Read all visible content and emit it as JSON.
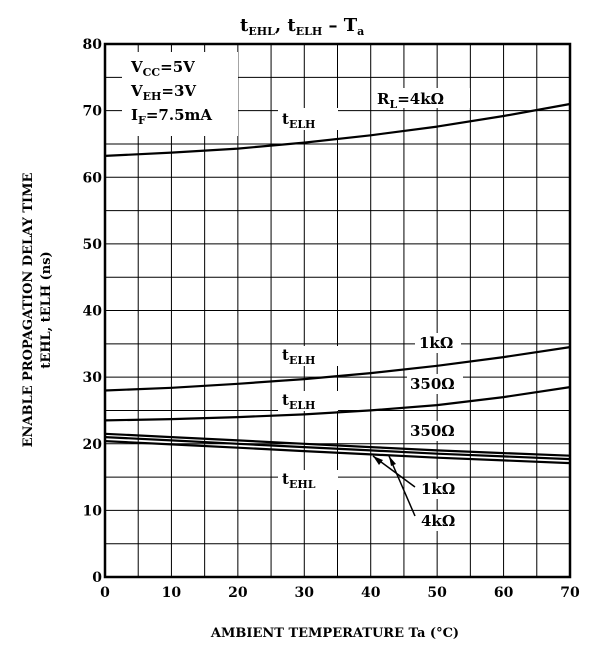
{
  "chart_data": {
    "type": "line",
    "title": {
      "a": "t",
      "a_sub": "EHL",
      "b": ", t",
      "b_sub": "ELH",
      "c": " – T",
      "c_sub": "a"
    },
    "xlabel": "AMBIENT TEMPERATURE Ta (°C)",
    "ylabel": {
      "line1": "ENABLE PROPAGATION DELAY TIME",
      "line2": "tEHL, tELH (ns)"
    },
    "xlim": [
      0,
      70
    ],
    "ylim": [
      0,
      80
    ],
    "x_ticks": [
      0,
      10,
      20,
      30,
      40,
      50,
      60,
      70
    ],
    "y_ticks": [
      0,
      10,
      20,
      30,
      40,
      50,
      60,
      70,
      80
    ],
    "grid": true,
    "conditions": [
      {
        "main": "V",
        "sub": "CC",
        "rest": "=5V"
      },
      {
        "main": "V",
        "sub": "EH",
        "rest": "=3V"
      },
      {
        "main": "I",
        "sub": "F",
        "rest": "=7.5mA"
      }
    ],
    "series": [
      {
        "name": "tELH RL=4kΩ",
        "x": [
          0,
          10,
          20,
          30,
          40,
          50,
          60,
          70
        ],
        "y": [
          63.2,
          63.7,
          64.3,
          65.2,
          66.3,
          67.6,
          69.2,
          71.0
        ]
      },
      {
        "name": "tELH 1kΩ",
        "x": [
          0,
          10,
          20,
          30,
          40,
          50,
          60,
          70
        ],
        "y": [
          28.0,
          28.4,
          29.0,
          29.7,
          30.6,
          31.7,
          33.0,
          34.5
        ]
      },
      {
        "name": "tELH 350Ω",
        "x": [
          0,
          10,
          20,
          30,
          40,
          50,
          60,
          70
        ],
        "y": [
          23.5,
          23.7,
          24.0,
          24.4,
          25.0,
          25.8,
          27.0,
          28.5
        ]
      },
      {
        "name": "tEHL 350Ω",
        "x": [
          0,
          10,
          20,
          30,
          40,
          50,
          60,
          70
        ],
        "y": [
          21.5,
          21.0,
          20.5,
          20.0,
          19.5,
          19.0,
          18.6,
          18.2
        ]
      },
      {
        "name": "tEHL 1kΩ",
        "x": [
          0,
          10,
          20,
          30,
          40,
          50,
          60,
          70
        ],
        "y": [
          21.0,
          20.5,
          20.0,
          19.5,
          19.0,
          18.5,
          18.1,
          17.7
        ]
      },
      {
        "name": "tEHL 4kΩ",
        "x": [
          0,
          10,
          20,
          30,
          40,
          50,
          60,
          70
        ],
        "y": [
          20.4,
          19.9,
          19.4,
          18.9,
          18.4,
          17.9,
          17.5,
          17.1
        ]
      }
    ],
    "annotations": {
      "rl": {
        "main": "R",
        "sub": "L",
        "rest": "=4kΩ"
      },
      "telh": {
        "main": "t",
        "sub": "ELH"
      },
      "tehl": {
        "main": "t",
        "sub": "EHL"
      },
      "r_1k": "1kΩ",
      "r_350": "350Ω",
      "r_4k": "4kΩ"
    }
  }
}
